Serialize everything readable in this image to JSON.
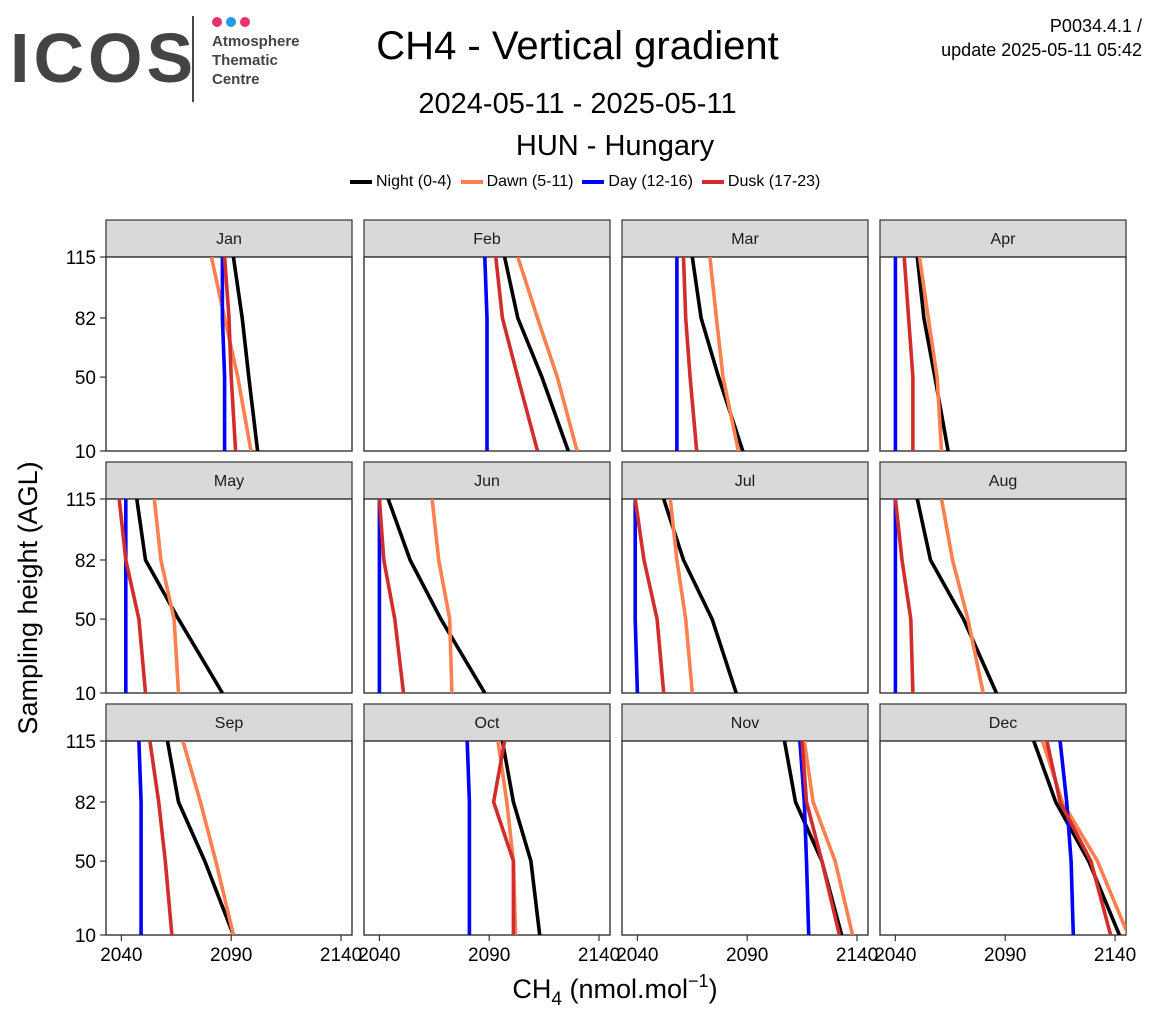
{
  "header": {
    "logo": "ICOS",
    "logo_subtitle": [
      "Atmosphere",
      "Thematic",
      "Centre"
    ],
    "logo_dot_colors": [
      "#e8336d",
      "#1e9be9",
      "#e8336d"
    ],
    "title": "CH4 - Vertical gradient",
    "period": "2024-05-11 - 2025-05-11",
    "station": "HUN - Hungary",
    "version_line1": "P0034.4.1 /",
    "version_line2": "update  2025-05-11 05:42"
  },
  "chart_data": {
    "type": "line",
    "layout": "small-multiples",
    "xlabel": "CH4 (nmol.mol-1)",
    "ylabel": "Sampling height (AGL)",
    "xlim": [
      2033,
      2145
    ],
    "ylim": [
      10,
      115
    ],
    "xticks": [
      2040,
      2090,
      2140
    ],
    "yticks": [
      10,
      50,
      82,
      115
    ],
    "heights": [
      10,
      50,
      82,
      115
    ],
    "legend_position": "top",
    "series_meta": [
      {
        "name": "Night (0-4)",
        "color": "#000000"
      },
      {
        "name": "Dawn (5-11)",
        "color": "#ff7f50"
      },
      {
        "name": "Day (12-16)",
        "color": "#0000ff"
      },
      {
        "name": "Dusk (17-23)",
        "color": "#d22d2d"
      }
    ],
    "panels": [
      {
        "month": "Jan",
        "series": {
          "Night (0-4)": [
            2102,
            2098,
            2095,
            2091
          ],
          "Dawn (5-11)": [
            2099,
            2093,
            2087,
            2081
          ],
          "Day (12-16)": [
            2087,
            2087,
            2086,
            2086
          ],
          "Dusk (17-23)": [
            2092,
            2090,
            2089,
            2087
          ]
        }
      },
      {
        "month": "Feb",
        "series": {
          "Night (0-4)": [
            2126,
            2114,
            2103,
            2097
          ],
          "Dawn (5-11)": [
            2130,
            2121,
            2112,
            2103
          ],
          "Day (12-16)": [
            2089,
            2089,
            2089,
            2088
          ],
          "Dusk (17-23)": [
            2112,
            2103,
            2096,
            2093
          ]
        }
      },
      {
        "month": "Mar",
        "series": {
          "Night (0-4)": [
            2088,
            2077,
            2069,
            2065
          ],
          "Dawn (5-11)": [
            2086,
            2079,
            2076,
            2073
          ],
          "Day (12-16)": [
            2058,
            2058,
            2058,
            2058
          ],
          "Dusk (17-23)": [
            2067,
            2064,
            2062,
            2061
          ]
        }
      },
      {
        "month": "Apr",
        "series": {
          "Night (0-4)": [
            2064,
            2058,
            2053,
            2050
          ],
          "Dawn (5-11)": [
            2061,
            2059,
            2055,
            2051
          ],
          "Day (12-16)": [
            2040,
            2040,
            2040,
            2040
          ],
          "Dusk (17-23)": [
            2048,
            2048,
            2046,
            2044
          ]
        }
      },
      {
        "month": "May",
        "series": {
          "Night (0-4)": [
            2086,
            2066,
            2051,
            2047
          ],
          "Dawn (5-11)": [
            2066,
            2064,
            2058,
            2055
          ],
          "Day (12-16)": [
            2042,
            2042,
            2042,
            2042
          ],
          "Dusk (17-23)": [
            2051,
            2048,
            2042,
            2039
          ]
        }
      },
      {
        "month": "Jun",
        "series": {
          "Night (0-4)": [
            2088,
            2068,
            2054,
            2044
          ],
          "Dawn (5-11)": [
            2073,
            2072,
            2067,
            2064
          ],
          "Day (12-16)": [
            2040,
            2040,
            2040,
            2040
          ],
          "Dusk (17-23)": [
            2051,
            2047,
            2042,
            2040
          ]
        }
      },
      {
        "month": "Jul",
        "series": {
          "Night (0-4)": [
            2085,
            2074,
            2061,
            2052
          ],
          "Dawn (5-11)": [
            2065,
            2062,
            2058,
            2055
          ],
          "Day (12-16)": [
            2040,
            2039,
            2039,
            2039
          ],
          "Dusk (17-23)": [
            2052,
            2049,
            2043,
            2039
          ]
        }
      },
      {
        "month": "Aug",
        "series": {
          "Night (0-4)": [
            2086,
            2071,
            2056,
            2050
          ],
          "Dawn (5-11)": [
            2080,
            2073,
            2066,
            2061
          ],
          "Day (12-16)": [
            2040,
            2040,
            2040,
            2040
          ],
          "Dusk (17-23)": [
            2048,
            2047,
            2043,
            2040
          ]
        }
      },
      {
        "month": "Sep",
        "series": {
          "Night (0-4)": [
            2091,
            2078,
            2066,
            2061
          ],
          "Dawn (5-11)": [
            2091,
            2083,
            2076,
            2068
          ],
          "Day (12-16)": [
            2049,
            2049,
            2049,
            2048
          ],
          "Dusk (17-23)": [
            2063,
            2060,
            2057,
            2053
          ]
        }
      },
      {
        "month": "Oct",
        "series": {
          "Night (0-4)": [
            2113,
            2109,
            2101,
            2096
          ],
          "Dawn (5-11)": [
            2102,
            2101,
            2098,
            2094
          ],
          "Day (12-16)": [
            2081,
            2081,
            2081,
            2080
          ],
          "Dusk (17-23)": [
            2101,
            2101,
            2092,
            2097
          ]
        }
      },
      {
        "month": "Nov",
        "series": {
          "Night (0-4)": [
            2133,
            2124,
            2112,
            2107
          ],
          "Dawn (5-11)": [
            2138,
            2130,
            2120,
            2116
          ],
          "Day (12-16)": [
            2118,
            2117,
            2116,
            2114
          ],
          "Dusk (17-23)": [
            2132,
            2124,
            2117,
            2115
          ]
        }
      },
      {
        "month": "Dec",
        "series": {
          "Night (0-4)": [
            2142,
            2128,
            2113,
            2103
          ],
          "Dawn (5-11)": [
            2146,
            2132,
            2116,
            2107
          ],
          "Day (12-16)": [
            2121,
            2120,
            2118,
            2115
          ],
          "Dusk (17-23)": [
            2138,
            2129,
            2115,
            2109
          ]
        }
      }
    ]
  }
}
